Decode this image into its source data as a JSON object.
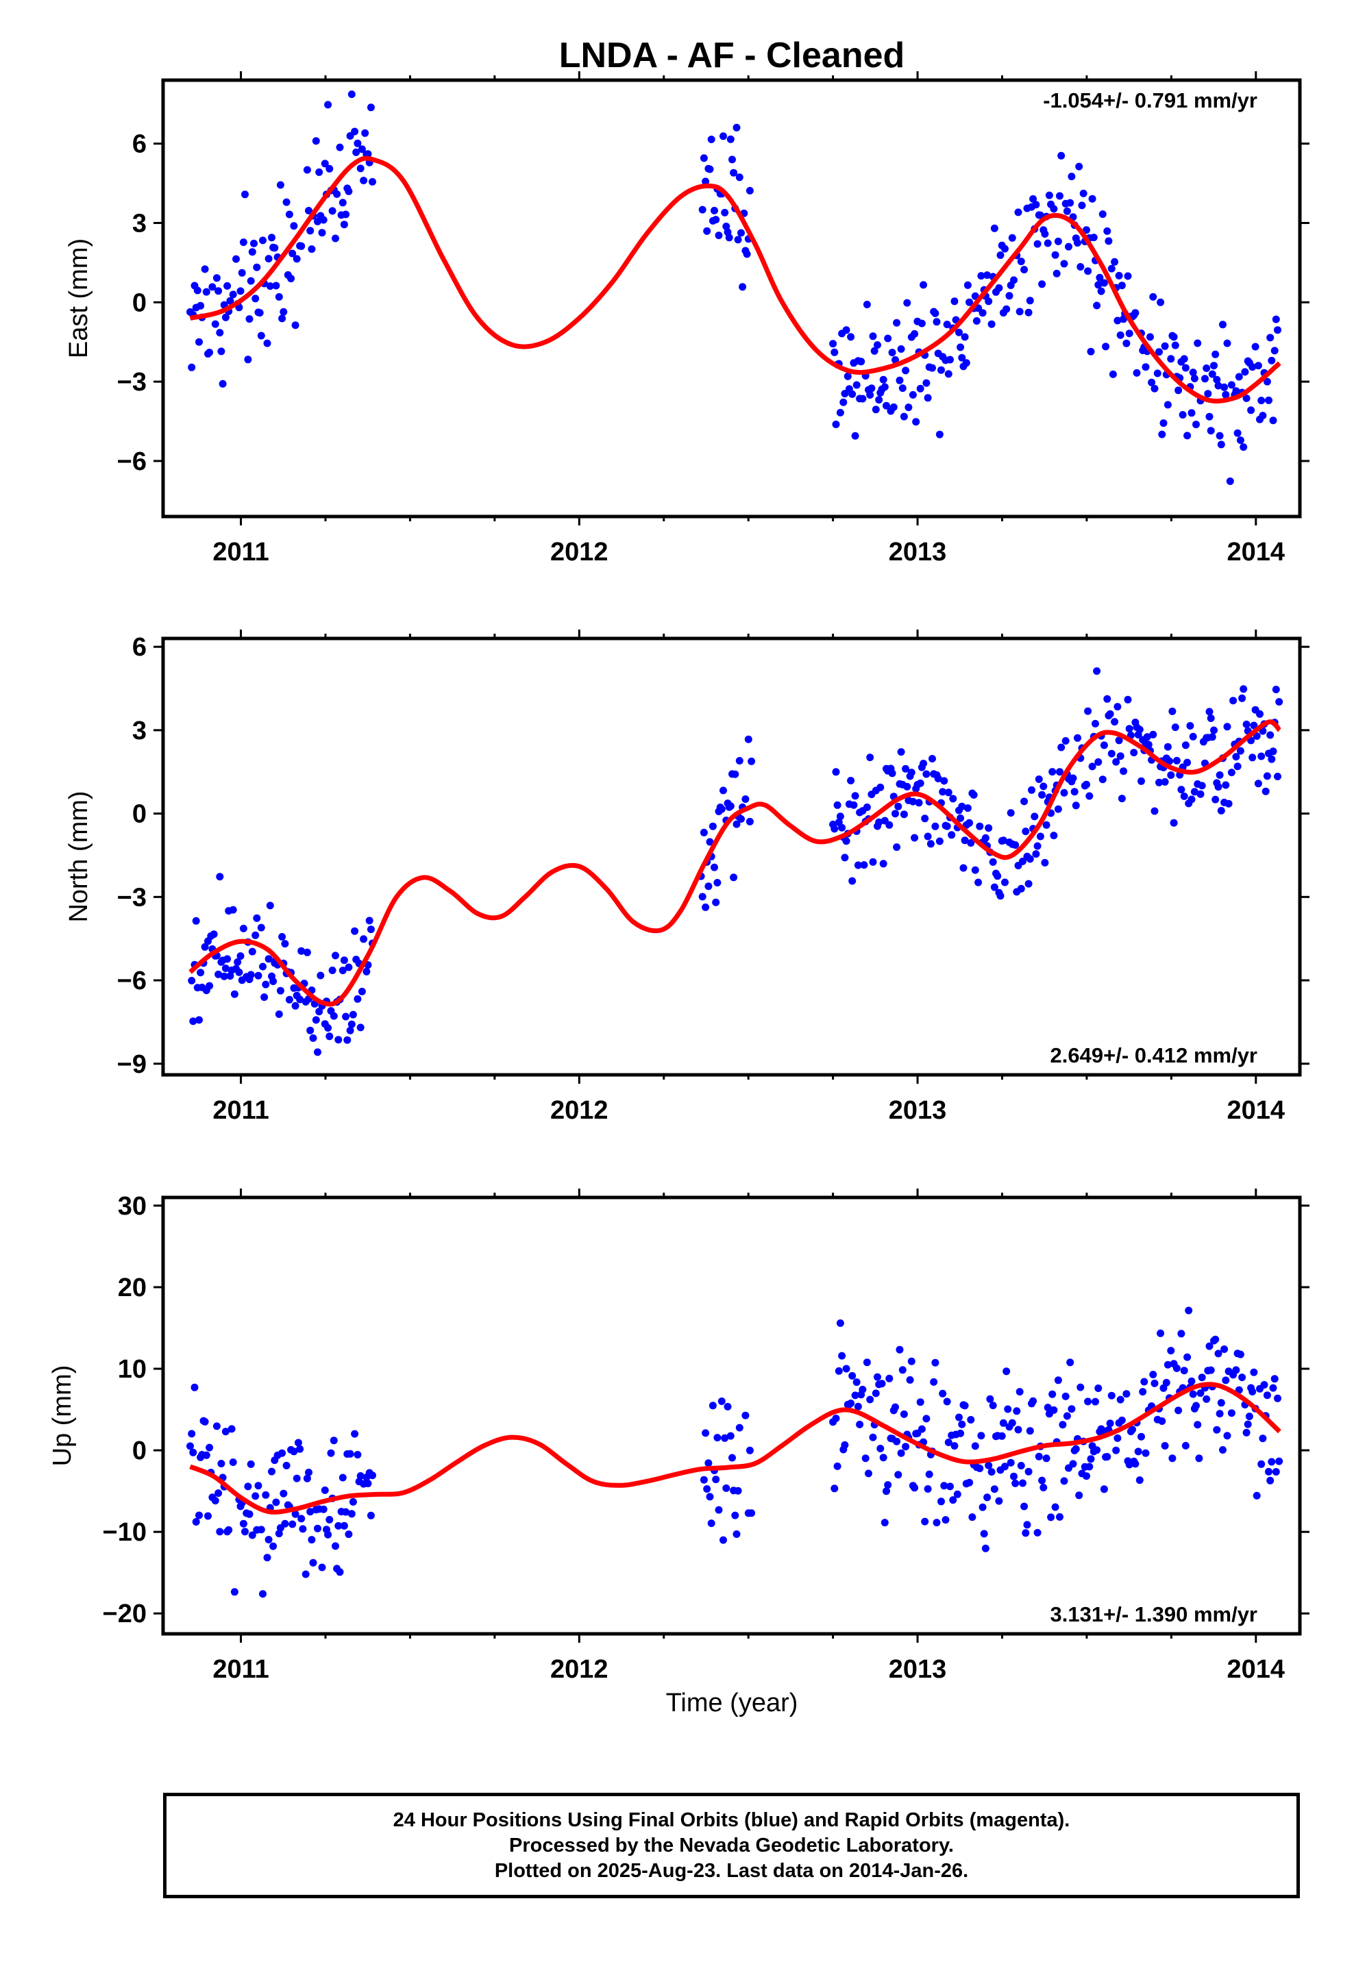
{
  "title": "LNDA  - AF - Cleaned",
  "x_axis_label": "Time (year)",
  "footer": {
    "line1": "24 Hour Positions Using Final Orbits (blue) and Rapid Orbits (magenta).",
    "line2": "Processed by the Nevada Geodetic Laboratory.",
    "line3": "Plotted on 2025-Aug-23. Last data on 2014-Jan-26."
  },
  "colors": {
    "points": "#0000ff",
    "model": "#ff0000",
    "frame": "#000000"
  },
  "chart_data": [
    {
      "type": "scatter",
      "name": "east",
      "title": "LNDA  - AF - Cleaned",
      "ylabel": "East (mm)",
      "xlabel": "",
      "xlim": [
        2010.77,
        2014.13
      ],
      "ylim": [
        -8.1,
        8.4
      ],
      "xticks": [
        2011,
        2012,
        2013,
        2014
      ],
      "yticks": [
        -6,
        -3,
        0,
        3,
        6
      ],
      "rate_label": "-1.054+/- 0.791 mm/yr",
      "rate_position": "top-right",
      "grid": false,
      "data_segments": [
        [
          2010.85,
          2011.39
        ],
        [
          2012.36,
          2012.51
        ],
        [
          2012.75,
          2014.07
        ]
      ],
      "scatter_sd": 1.3,
      "model_curve": {
        "x": [
          2010.85,
          2010.95,
          2011.05,
          2011.15,
          2011.25,
          2011.33,
          2011.39,
          2011.48,
          2011.6,
          2011.7,
          2011.8,
          2011.9,
          2012.0,
          2012.1,
          2012.2,
          2012.3,
          2012.38,
          2012.44,
          2012.52,
          2012.6,
          2012.7,
          2012.8,
          2012.9,
          2013.0,
          2013.1,
          2013.2,
          2013.3,
          2013.38,
          2013.46,
          2013.54,
          2013.62,
          2013.7,
          2013.78,
          2013.86,
          2013.94,
          2014.0,
          2014.07
        ],
        "y": [
          -0.6,
          -0.3,
          0.6,
          2.2,
          4.0,
          5.2,
          5.4,
          4.6,
          1.6,
          -0.6,
          -1.6,
          -1.5,
          -0.6,
          0.8,
          2.6,
          4.0,
          4.4,
          4.0,
          2.2,
          0.0,
          -1.8,
          -2.6,
          -2.5,
          -2.0,
          -1.1,
          0.4,
          2.0,
          3.2,
          3.0,
          1.5,
          -0.5,
          -2.0,
          -3.1,
          -3.7,
          -3.6,
          -3.1,
          -2.3
        ]
      }
    },
    {
      "type": "scatter",
      "name": "north",
      "ylabel": "North (mm)",
      "xlabel": "",
      "xlim": [
        2010.77,
        2014.13
      ],
      "ylim": [
        -9.4,
        6.3
      ],
      "xticks": [
        2011,
        2012,
        2013,
        2014
      ],
      "yticks": [
        -9,
        -6,
        -3,
        0,
        3,
        6
      ],
      "rate_label": "2.649+/- 0.412 mm/yr",
      "rate_position": "bottom-right",
      "grid": false,
      "data_segments": [
        [
          2010.85,
          2011.39
        ],
        [
          2012.36,
          2012.51
        ],
        [
          2012.75,
          2014.07
        ]
      ],
      "scatter_sd": 1.0,
      "model_curve": {
        "x": [
          2010.85,
          2010.92,
          2011.0,
          2011.08,
          2011.16,
          2011.24,
          2011.3,
          2011.38,
          2011.46,
          2011.54,
          2011.62,
          2011.7,
          2011.77,
          2011.84,
          2011.92,
          2012.0,
          2012.08,
          2012.16,
          2012.24,
          2012.3,
          2012.37,
          2012.44,
          2012.5,
          2012.55,
          2012.62,
          2012.7,
          2012.78,
          2012.86,
          2012.94,
          2013.0,
          2013.06,
          2013.14,
          2013.22,
          2013.28,
          2013.36,
          2013.44,
          2013.52,
          2013.58,
          2013.66,
          2013.74,
          2013.82,
          2013.9,
          2013.98,
          2014.04,
          2014.07
        ],
        "y": [
          -5.7,
          -5.0,
          -4.6,
          -4.9,
          -6.0,
          -6.8,
          -6.6,
          -5.0,
          -3.0,
          -2.3,
          -2.8,
          -3.6,
          -3.7,
          -3.0,
          -2.1,
          -1.9,
          -2.7,
          -3.9,
          -4.2,
          -3.5,
          -1.8,
          -0.3,
          0.2,
          0.3,
          -0.4,
          -1.0,
          -0.8,
          -0.2,
          0.5,
          0.7,
          0.3,
          -0.6,
          -1.4,
          -1.5,
          -0.4,
          1.5,
          2.7,
          2.9,
          2.4,
          1.7,
          1.5,
          2.0,
          2.8,
          3.3,
          3.0
        ]
      }
    },
    {
      "type": "scatter",
      "name": "up",
      "ylabel": "Up (mm)",
      "xlabel": "Time (year)",
      "xlim": [
        2010.77,
        2014.13
      ],
      "ylim": [
        -22.5,
        31.0
      ],
      "xticks": [
        2011,
        2012,
        2013,
        2014
      ],
      "yticks": [
        -20,
        -10,
        0,
        10,
        20,
        30
      ],
      "rate_label": "3.131+/- 1.390 mm/yr",
      "rate_position": "bottom-right",
      "grid": false,
      "data_segments": [
        [
          2010.85,
          2011.39
        ],
        [
          2012.36,
          2012.51
        ],
        [
          2012.75,
          2014.07
        ]
      ],
      "scatter_sd": 4.8,
      "model_curve": {
        "x": [
          2010.85,
          2010.92,
          2011.0,
          2011.08,
          2011.16,
          2011.24,
          2011.32,
          2011.4,
          2011.48,
          2011.56,
          2011.64,
          2011.72,
          2011.8,
          2011.88,
          2011.96,
          2012.04,
          2012.12,
          2012.2,
          2012.28,
          2012.36,
          2012.44,
          2012.52,
          2012.6,
          2012.68,
          2012.76,
          2012.82,
          2012.9,
          2012.98,
          2013.06,
          2013.14,
          2013.22,
          2013.3,
          2013.38,
          2013.46,
          2013.54,
          2013.62,
          2013.7,
          2013.78,
          2013.84,
          2013.9,
          2013.98,
          2014.07
        ],
        "y": [
          -2.0,
          -3.2,
          -5.8,
          -7.5,
          -7.2,
          -6.3,
          -5.6,
          -5.4,
          -5.2,
          -3.6,
          -1.4,
          0.6,
          1.6,
          0.8,
          -1.6,
          -3.8,
          -4.3,
          -3.8,
          -3.0,
          -2.3,
          -2.1,
          -1.6,
          0.6,
          3.0,
          4.8,
          4.7,
          3.0,
          1.2,
          -0.4,
          -1.4,
          -1.1,
          -0.2,
          0.6,
          0.9,
          1.6,
          3.0,
          5.0,
          7.0,
          8.0,
          7.8,
          5.8,
          2.3
        ]
      }
    }
  ]
}
